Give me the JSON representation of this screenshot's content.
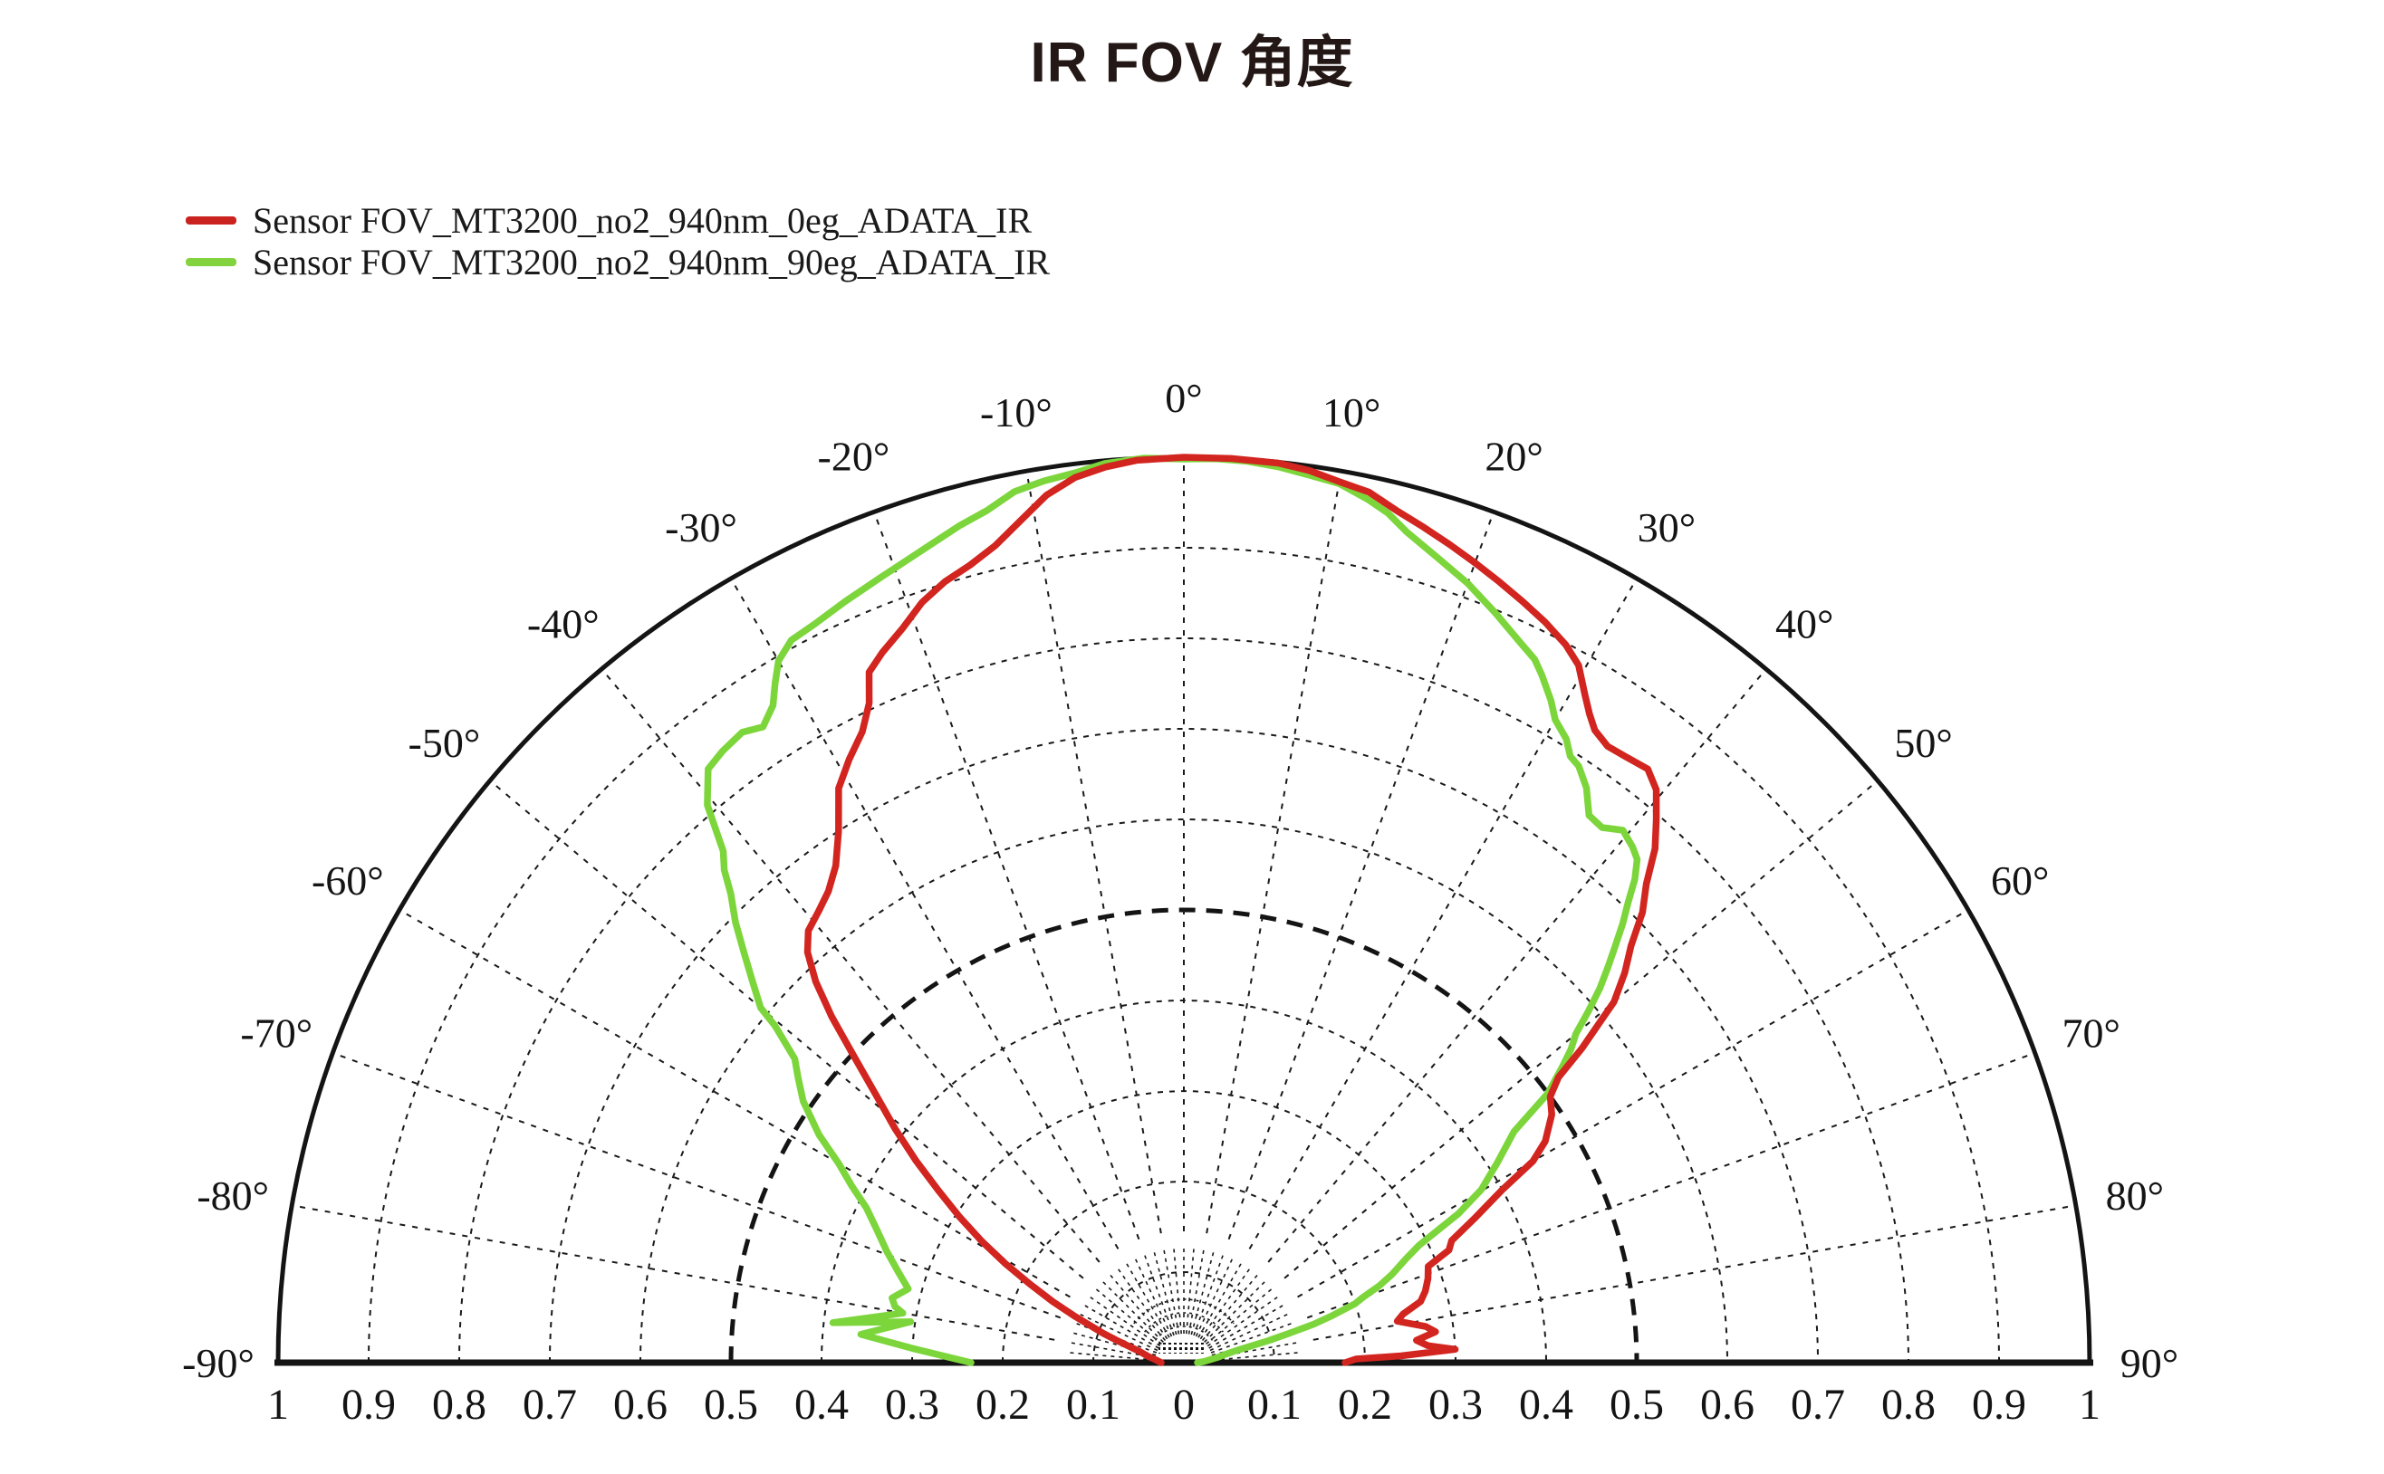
{
  "title": "IR FOV 角度",
  "legend": {
    "items": [
      {
        "label": "Sensor FOV_MT3200_no2_940nm_0eg_ADATA_IR",
        "color": "#c9221f"
      },
      {
        "label": "Sensor FOV_MT3200_no2_940nm_90eg_ADATA_IR",
        "color": "#82d33e"
      }
    ]
  },
  "colors": {
    "background": "#ffffff",
    "axis": "#141414",
    "grid": "#1a1a1a",
    "label_text": "#141414",
    "title_text": "#231815",
    "series_red": "#d2251f",
    "series_green": "#7cd63b"
  },
  "chart_data": {
    "type": "line",
    "projection": "polar-half",
    "title": "IR FOV 角度",
    "rlim": [
      0,
      1
    ],
    "grid": {
      "circle_step": 0.1,
      "bold_circle": 0.5,
      "outer_circle": 1.0,
      "spoke_step_deg": 10,
      "style": "dashed"
    },
    "angle_labels": [
      {
        "deg": -90,
        "text": "-90°"
      },
      {
        "deg": -80,
        "text": "-80°"
      },
      {
        "deg": -70,
        "text": "-70°"
      },
      {
        "deg": -60,
        "text": "-60°"
      },
      {
        "deg": -50,
        "text": "-50°"
      },
      {
        "deg": -40,
        "text": "-40°"
      },
      {
        "deg": -30,
        "text": "-30°"
      },
      {
        "deg": -20,
        "text": "-20°"
      },
      {
        "deg": -10,
        "text": "-10°"
      },
      {
        "deg": 0,
        "text": "0°"
      },
      {
        "deg": 10,
        "text": "10°"
      },
      {
        "deg": 20,
        "text": "20°"
      },
      {
        "deg": 30,
        "text": "30°"
      },
      {
        "deg": 40,
        "text": "40°"
      },
      {
        "deg": 50,
        "text": "50°"
      },
      {
        "deg": 60,
        "text": "60°"
      },
      {
        "deg": 70,
        "text": "70°"
      },
      {
        "deg": 80,
        "text": "80°"
      },
      {
        "deg": 90,
        "text": "90°"
      }
    ],
    "radial_axis_labels": [
      {
        "value": -1.0,
        "text": "1"
      },
      {
        "value": -0.9,
        "text": "0.9"
      },
      {
        "value": -0.8,
        "text": "0.8"
      },
      {
        "value": -0.7,
        "text": "0.7"
      },
      {
        "value": -0.6,
        "text": "0.6"
      },
      {
        "value": -0.5,
        "text": "0.5"
      },
      {
        "value": -0.4,
        "text": "0.4"
      },
      {
        "value": -0.3,
        "text": "0.3"
      },
      {
        "value": -0.2,
        "text": "0.2"
      },
      {
        "value": -0.1,
        "text": "0.1"
      },
      {
        "value": 0.0,
        "text": "0"
      },
      {
        "value": 0.1,
        "text": "0.1"
      },
      {
        "value": 0.2,
        "text": "0.2"
      },
      {
        "value": 0.3,
        "text": "0.3"
      },
      {
        "value": 0.4,
        "text": "0.4"
      },
      {
        "value": 0.5,
        "text": "0.5"
      },
      {
        "value": 0.6,
        "text": "0.6"
      },
      {
        "value": 0.7,
        "text": "0.7"
      },
      {
        "value": 0.8,
        "text": "0.8"
      },
      {
        "value": 0.9,
        "text": "0.9"
      },
      {
        "value": 1.0,
        "text": "1"
      }
    ],
    "series": [
      {
        "name": "Sensor FOV_MT3200_no2_940nm_90eg_ADATA_IR",
        "color": "#7cd63b",
        "points": [
          [
            -90,
            0.235
          ],
          [
            -87,
            0.3
          ],
          [
            -85,
            0.358
          ],
          [
            -81.5,
            0.305
          ],
          [
            -83.5,
            0.39
          ],
          [
            -80,
            0.315
          ],
          [
            -79,
            0.325
          ],
          [
            -77.5,
            0.33
          ],
          [
            -75,
            0.315
          ],
          [
            -72.5,
            0.33
          ],
          [
            -69.5,
            0.35
          ],
          [
            -66.5,
            0.37
          ],
          [
            -64,
            0.39
          ],
          [
            -62,
            0.415
          ],
          [
            -60,
            0.44
          ],
          [
            -58,
            0.475
          ],
          [
            -55.5,
            0.51
          ],
          [
            -53.5,
            0.53
          ],
          [
            -52,
            0.545
          ],
          [
            -50.5,
            0.585
          ],
          [
            -50,
            0.61
          ],
          [
            -48.5,
            0.636
          ],
          [
            -47,
            0.664
          ],
          [
            -45.5,
            0.694
          ],
          [
            -44,
            0.72
          ],
          [
            -43,
            0.744
          ],
          [
            -42,
            0.76
          ],
          [
            -40.5,
            0.81
          ],
          [
            -38.7,
            0.84
          ],
          [
            -37,
            0.846
          ],
          [
            -35,
            0.85
          ],
          [
            -33.5,
            0.842
          ],
          [
            -32,
            0.856
          ],
          [
            -31,
            0.876
          ],
          [
            -30,
            0.895
          ],
          [
            -28.5,
            0.908
          ],
          [
            -26.5,
            0.912
          ],
          [
            -24,
            0.92
          ],
          [
            -21,
            0.93
          ],
          [
            -18,
            0.942
          ],
          [
            -15,
            0.957
          ],
          [
            -13,
            0.966
          ],
          [
            -11,
            0.98
          ],
          [
            -9,
            0.986
          ],
          [
            -7,
            0.99
          ],
          [
            -5,
            0.997
          ],
          [
            -2.5,
            1.0
          ],
          [
            0,
            0.998
          ],
          [
            2,
            0.999
          ],
          [
            4,
            0.998
          ],
          [
            6,
            0.995
          ],
          [
            8,
            0.99
          ],
          [
            10,
            0.986
          ],
          [
            12,
            0.975
          ],
          [
            13.5,
            0.965
          ],
          [
            15,
            0.95
          ],
          [
            17.5,
            0.932
          ],
          [
            20,
            0.916
          ],
          [
            22.5,
            0.897
          ],
          [
            25,
            0.878
          ],
          [
            26.5,
            0.868
          ],
          [
            27.5,
            0.856
          ],
          [
            29,
            0.836
          ],
          [
            30,
            0.82
          ],
          [
            31.5,
            0.808
          ],
          [
            32.5,
            0.794
          ],
          [
            33.5,
            0.79
          ],
          [
            35,
            0.775
          ],
          [
            36.5,
            0.752
          ],
          [
            38,
            0.75
          ],
          [
            39.5,
            0.762
          ],
          [
            41,
            0.755
          ],
          [
            42,
            0.748
          ],
          [
            43,
            0.73
          ],
          [
            44,
            0.706
          ],
          [
            45,
            0.685
          ],
          [
            46,
            0.662
          ],
          [
            47,
            0.64
          ],
          [
            48,
            0.618
          ],
          [
            49,
            0.592
          ],
          [
            50,
            0.565
          ],
          [
            51,
            0.55
          ],
          [
            52,
            0.53
          ],
          [
            53.5,
            0.5
          ],
          [
            55,
            0.445
          ],
          [
            57.5,
            0.41
          ],
          [
            59.8,
            0.38
          ],
          [
            61.5,
            0.345
          ],
          [
            63.5,
            0.29
          ],
          [
            65,
            0.27
          ],
          [
            67,
            0.25
          ],
          [
            68.5,
            0.232
          ],
          [
            70,
            0.21
          ],
          [
            71,
            0.2
          ],
          [
            72.5,
            0.17
          ],
          [
            73.5,
            0.15
          ],
          [
            74.5,
            0.12
          ],
          [
            75.5,
            0.095
          ],
          [
            77,
            0.06
          ],
          [
            78.5,
            0.048
          ],
          [
            81,
            0.038
          ],
          [
            84,
            0.028
          ],
          [
            87,
            0.022
          ],
          [
            90,
            0.015
          ]
        ]
      },
      {
        "name": "Sensor FOV_MT3200_no2_940nm_0eg_ADATA_IR",
        "color": "#d2251f",
        "points": [
          [
            -90,
            0.025
          ],
          [
            -85,
            0.03
          ],
          [
            -80,
            0.04
          ],
          [
            -76,
            0.05
          ],
          [
            -72,
            0.075
          ],
          [
            -70,
            0.095
          ],
          [
            -67,
            0.13
          ],
          [
            -65,
            0.16
          ],
          [
            -63,
            0.19
          ],
          [
            -61,
            0.225
          ],
          [
            -59,
            0.26
          ],
          [
            -57,
            0.295
          ],
          [
            -55,
            0.33
          ],
          [
            -53,
            0.37
          ],
          [
            -51,
            0.41
          ],
          [
            -49,
            0.45
          ],
          [
            -47,
            0.5
          ],
          [
            -45.5,
            0.545
          ],
          [
            -44,
            0.585
          ],
          [
            -42.5,
            0.615
          ],
          [
            -41,
            0.632
          ],
          [
            -39,
            0.641
          ],
          [
            -37,
            0.652
          ],
          [
            -35,
            0.67
          ],
          [
            -33,
            0.7
          ],
          [
            -31,
            0.74
          ],
          [
            -29,
            0.762
          ],
          [
            -27,
            0.782
          ],
          [
            -25.5,
            0.807
          ],
          [
            -24.5,
            0.838
          ],
          [
            -23,
            0.852
          ],
          [
            -21,
            0.868
          ],
          [
            -19,
            0.888
          ],
          [
            -17,
            0.902
          ],
          [
            -15,
            0.912
          ],
          [
            -13,
            0.926
          ],
          [
            -11,
            0.947
          ],
          [
            -9,
            0.97
          ],
          [
            -7,
            0.985
          ],
          [
            -5,
            0.993
          ],
          [
            -3,
            0.998
          ],
          [
            0,
            1.0
          ],
          [
            3,
            1.0
          ],
          [
            6,
            0.999
          ],
          [
            8,
            0.995
          ],
          [
            10,
            0.988
          ],
          [
            12,
            0.983
          ],
          [
            14,
            0.97
          ],
          [
            16,
            0.96
          ],
          [
            18,
            0.95
          ],
          [
            20,
            0.94
          ],
          [
            22,
            0.93
          ],
          [
            24,
            0.92
          ],
          [
            26,
            0.91
          ],
          [
            28,
            0.898
          ],
          [
            29.5,
            0.885
          ],
          [
            31,
            0.86
          ],
          [
            32,
            0.845
          ],
          [
            33,
            0.833
          ],
          [
            34.5,
            0.826
          ],
          [
            36,
            0.828
          ],
          [
            38,
            0.832
          ],
          [
            39.5,
            0.82
          ],
          [
            41,
            0.795
          ],
          [
            42.5,
            0.77
          ],
          [
            44,
            0.735
          ],
          [
            45.5,
            0.71
          ],
          [
            47,
            0.675
          ],
          [
            48.5,
            0.65
          ],
          [
            50,
            0.62
          ],
          [
            50.8,
            0.59
          ],
          [
            51.7,
            0.56
          ],
          [
            52.7,
            0.52
          ],
          [
            54,
            0.5
          ],
          [
            56,
            0.49
          ],
          [
            58.5,
            0.468
          ],
          [
            60,
            0.445
          ],
          [
            61.5,
            0.4
          ],
          [
            63.5,
            0.36
          ],
          [
            65.5,
            0.325
          ],
          [
            67,
            0.318
          ],
          [
            68.5,
            0.29
          ],
          [
            71,
            0.285
          ],
          [
            73.5,
            0.278
          ],
          [
            75.5,
            0.27
          ],
          [
            77.5,
            0.248
          ],
          [
            79,
            0.24
          ],
          [
            81.5,
            0.27
          ],
          [
            83,
            0.28
          ],
          [
            84.5,
            0.258
          ],
          [
            86,
            0.27
          ],
          [
            87.2,
            0.3
          ],
          [
            88.2,
            0.24
          ],
          [
            88.8,
            0.19
          ],
          [
            90,
            0.178
          ]
        ]
      }
    ]
  }
}
